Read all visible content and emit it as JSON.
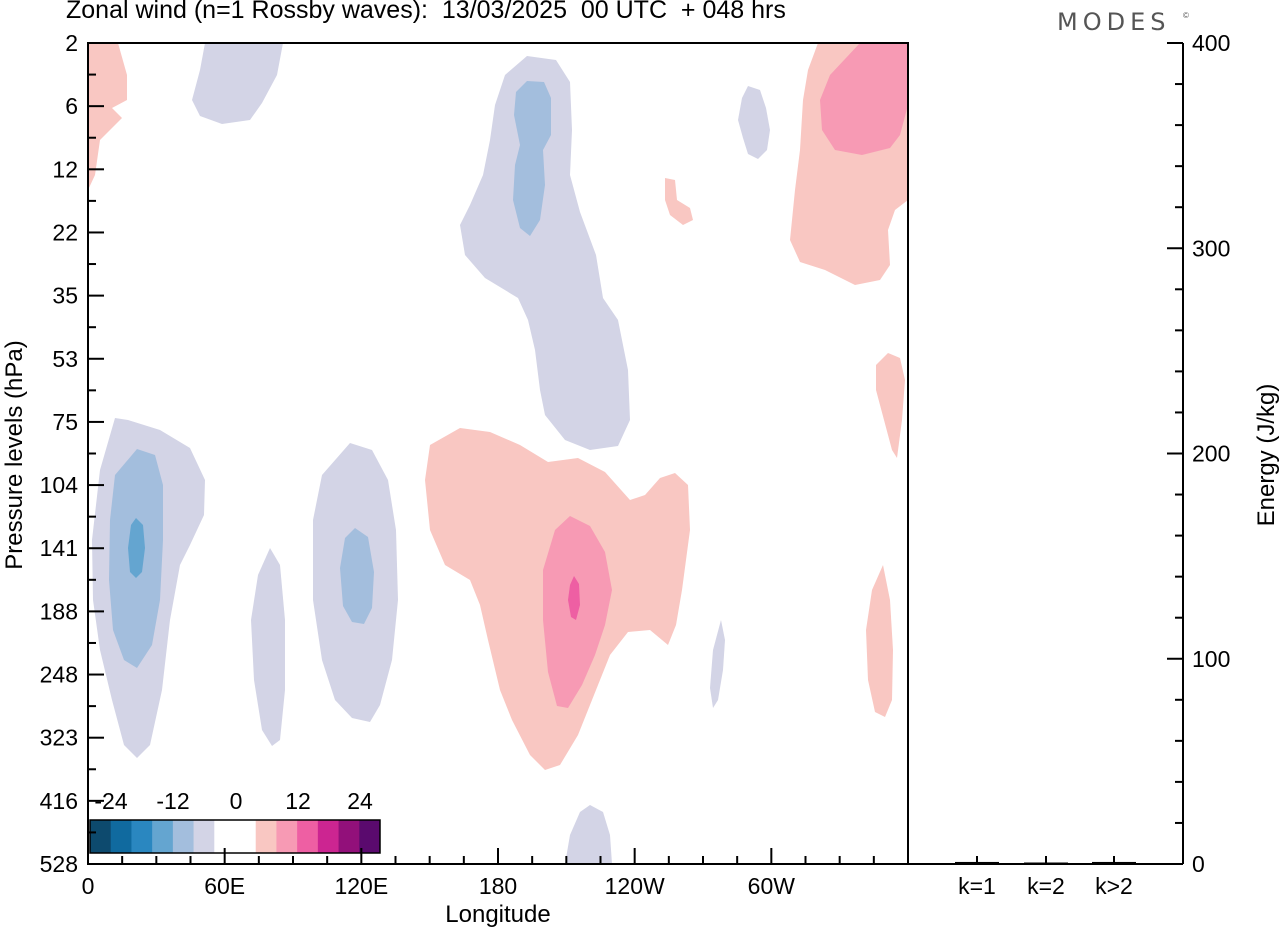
{
  "title": "Zonal wind (n=1 Rossby waves):  13/03/2025  00 UTC  + 048 hrs",
  "brand": {
    "name": "MODES",
    "mark": "©"
  },
  "chart_data": [
    {
      "type": "heatmap",
      "variable": "Zonal wind anomaly, n=1 Rossby waves",
      "xlabel": "Longitude",
      "ylabel": "Pressure levels (hPa)",
      "x_ticks": [
        "0",
        "60E",
        "120E",
        "180",
        "120W",
        "60W"
      ],
      "x_tick_values": [
        0,
        60,
        120,
        180,
        240,
        300
      ],
      "xlim": [
        0,
        360
      ],
      "y_ticks": [
        "2",
        "6",
        "12",
        "22",
        "35",
        "53",
        "75",
        "104",
        "141",
        "188",
        "248",
        "323",
        "416",
        "528"
      ],
      "y_tick_values": [
        2,
        6,
        12,
        22,
        35,
        53,
        75,
        104,
        141,
        188,
        248,
        323,
        416,
        528
      ],
      "grid": false,
      "colorbar": {
        "labels": [
          "-24",
          "-12",
          "0",
          "12",
          "24"
        ],
        "colors": [
          "#0d4a6e",
          "#106a9f",
          "#2a87c0",
          "#64a5d0",
          "#a3bedd",
          "#d3d4e6",
          "#ffffff",
          "#ffffff",
          "#f9c7c2",
          "#f79ab4",
          "#ee5fa3",
          "#cc2591",
          "#92107a",
          "#5a0a6e"
        ]
      },
      "features": [
        {
          "sign": "negative",
          "lon": 20,
          "level_hpa": 141,
          "peak": -16
        },
        {
          "sign": "negative",
          "lon": 78,
          "level_hpa": 248,
          "peak": -4
        },
        {
          "sign": "negative",
          "lon": 118,
          "level_hpa": 175,
          "peak": -12
        },
        {
          "sign": "negative",
          "lon": 192,
          "level_hpa": 10,
          "peak": -12
        },
        {
          "sign": "negative",
          "lon": 205,
          "level_hpa": 60,
          "peak": -4
        },
        {
          "sign": "negative",
          "lon": 50,
          "level_hpa": 5,
          "peak": -4
        },
        {
          "sign": "negative",
          "lon": 292,
          "level_hpa": 7,
          "peak": -4
        },
        {
          "sign": "negative",
          "lon": 277,
          "level_hpa": 250,
          "peak": -4
        },
        {
          "sign": "positive",
          "lon": 213,
          "level_hpa": 170,
          "peak": 16
        },
        {
          "sign": "positive",
          "lon": 335,
          "level_hpa": 6,
          "peak": 12
        },
        {
          "sign": "positive",
          "lon": 5,
          "level_hpa": 7,
          "peak": 4
        },
        {
          "sign": "positive",
          "lon": 347,
          "level_hpa": 70,
          "peak": 4
        },
        {
          "sign": "positive",
          "lon": 349,
          "level_hpa": 250,
          "peak": 4
        },
        {
          "sign": "positive",
          "lon": 265,
          "level_hpa": 16,
          "peak": 4
        }
      ]
    },
    {
      "type": "bar",
      "categories": [
        "k=1",
        "k=2",
        "k>2"
      ],
      "values": [
        1,
        0.5,
        1
      ],
      "ylabel": "Energy (J/kg)",
      "ylim": [
        0,
        400
      ],
      "y_ticks": [
        "0",
        "100",
        "200",
        "300",
        "400"
      ],
      "y_tick_values": [
        0,
        100,
        200,
        300,
        400
      ]
    }
  ]
}
